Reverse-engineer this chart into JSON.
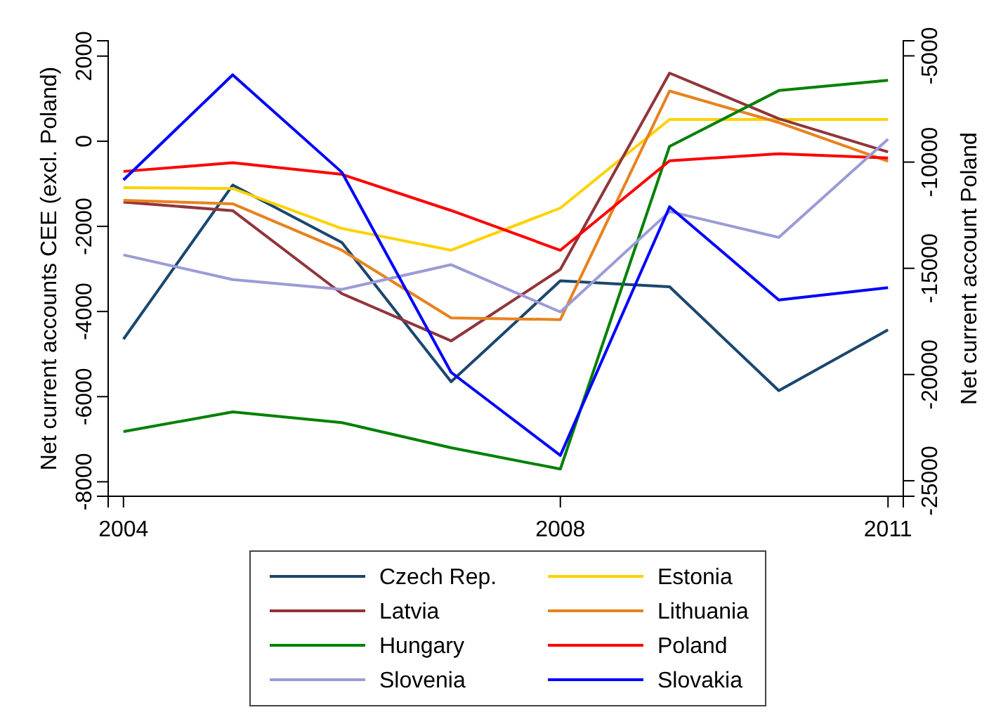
{
  "chart_data": {
    "type": "line",
    "ylabel": "Net current accounts CEE (excl. Poland)",
    "y2label": "Net current account Poland",
    "x": [
      2004,
      2005,
      2006,
      2007,
      2008,
      2009,
      2010,
      2011
    ],
    "xlim": [
      2003.86,
      2011.14
    ],
    "xticks": [
      2004,
      2008,
      2011
    ],
    "ylim": [
      -8340,
      2360
    ],
    "yticks": [
      -8000,
      -6000,
      -4000,
      -2000,
      0,
      2000
    ],
    "y2lim": [
      -25730,
      -4290
    ],
    "y2ticks": [
      -25000,
      -20000,
      -15000,
      -10000,
      -5000
    ],
    "grid": false,
    "legend": "bottom",
    "marker": "none",
    "line_style": "solid",
    "series": [
      {
        "name": "Czech Rep.",
        "color": "#1a476f",
        "values": [
          -4650,
          -1030,
          -2380,
          -5650,
          -3280,
          -3420,
          -5860,
          -4430
        ]
      },
      {
        "name": "Estonia",
        "color": "#ffd200",
        "values": [
          -1090,
          -1110,
          -2050,
          -2560,
          -1570,
          510,
          510,
          510
        ]
      },
      {
        "name": "Latvia",
        "color": "#90353b",
        "values": [
          -1430,
          -1630,
          -3580,
          -4690,
          -3010,
          1600,
          530,
          -250
        ]
      },
      {
        "name": "Lithuania",
        "color": "#e8821e",
        "values": [
          -1390,
          -1470,
          -2560,
          -4150,
          -4190,
          1180,
          440,
          -470
        ]
      },
      {
        "name": "Hungary",
        "color": "#008000",
        "values": [
          -6820,
          -6360,
          -6610,
          -7200,
          -7700,
          -120,
          1190,
          1430
        ]
      },
      {
        "name": "Poland",
        "color": "#ff0000",
        "axis": "y2",
        "values": [
          -10440,
          -10030,
          -10580,
          -12280,
          -14150,
          -9940,
          -9610,
          -9810
        ]
      },
      {
        "name": "Slovenia",
        "color": "#9b9bd7",
        "values": [
          -2670,
          -3250,
          -3480,
          -2900,
          -4010,
          -1650,
          -2260,
          50
        ]
      },
      {
        "name": "Slovakia",
        "color": "#0000ff",
        "values": [
          -910,
          1560,
          -730,
          -5430,
          -7380,
          -1540,
          -3730,
          -3440
        ]
      }
    ]
  }
}
